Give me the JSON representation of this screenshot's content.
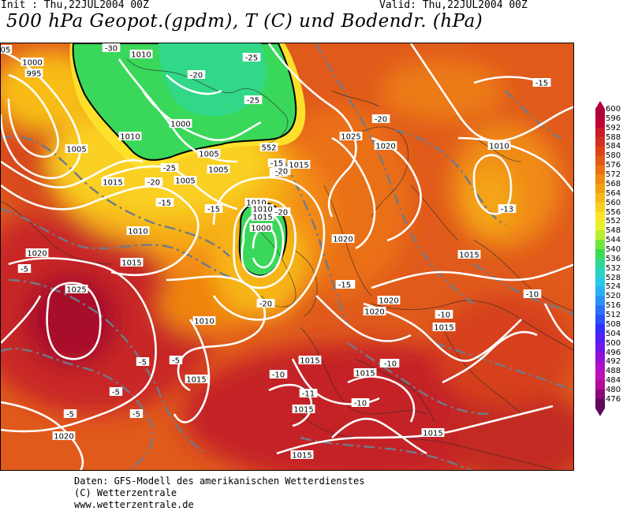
{
  "header": {
    "init": "Init : Thu,22JUL2004 00Z",
    "valid": "Valid: Thu,22JUL2004 00Z",
    "title": "500 hPa Geopot.(gpdm), T (C) und Bodendr. (hPa)"
  },
  "legend": {
    "levels": [
      "600",
      "596",
      "592",
      "588",
      "584",
      "580",
      "576",
      "572",
      "568",
      "564",
      "560",
      "556",
      "552",
      "548",
      "544",
      "540",
      "536",
      "532",
      "528",
      "524",
      "520",
      "516",
      "512",
      "508",
      "504",
      "500",
      "496",
      "492",
      "488",
      "484",
      "480",
      "476"
    ],
    "colors": [
      "#b0003a",
      "#c00038",
      "#cc1a2a",
      "#d42e20",
      "#dc4418",
      "#e45a14",
      "#ea7012",
      "#f08a10",
      "#f4a012",
      "#f8b816",
      "#fad020",
      "#fce42a",
      "#e8f02a",
      "#b8ee30",
      "#6ee83c",
      "#3cdc50",
      "#2ed890",
      "#28d4c0",
      "#26c8e4",
      "#2ab0f4",
      "#2c90f8",
      "#2c70fc",
      "#2c50fc",
      "#3030fc",
      "#5020f4",
      "#7018e8",
      "#9010d8",
      "#b010c8",
      "#c010b8",
      "#b00c98",
      "#8a0878",
      "#60085a"
    ]
  },
  "map": {
    "isobar_labels": [
      {
        "text": "1000"
      },
      {
        "text": "995"
      },
      {
        "text": "1010"
      },
      {
        "text": "1000"
      },
      {
        "text": "1005"
      },
      {
        "text": "1010"
      },
      {
        "text": "1005"
      },
      {
        "text": "1005"
      },
      {
        "text": "1015"
      },
      {
        "text": "1015"
      },
      {
        "text": "1025"
      },
      {
        "text": "1020"
      },
      {
        "text": "1010"
      },
      {
        "text": "1010"
      },
      {
        "text": "1010"
      },
      {
        "text": "1015"
      },
      {
        "text": "1010"
      },
      {
        "text": "1005"
      },
      {
        "text": "1000"
      },
      {
        "text": "1020"
      },
      {
        "text": "1015"
      },
      {
        "text": "1020"
      },
      {
        "text": "1015"
      },
      {
        "text": "1025"
      },
      {
        "text": "1010"
      },
      {
        "text": "1020"
      },
      {
        "text": "1020"
      },
      {
        "text": "1015"
      },
      {
        "text": "1015"
      },
      {
        "text": "1015"
      },
      {
        "text": "1015"
      },
      {
        "text": "1015"
      },
      {
        "text": "1020"
      },
      {
        "text": "1015"
      },
      {
        "text": "1015"
      }
    ],
    "temp_labels": [
      {
        "text": "-30"
      },
      {
        "text": "-25"
      },
      {
        "text": "-20"
      },
      {
        "text": "-25"
      },
      {
        "text": "-20"
      },
      {
        "text": "-25"
      },
      {
        "text": "-20"
      },
      {
        "text": "-15"
      },
      {
        "text": "-15"
      },
      {
        "text": "-20"
      },
      {
        "text": "-15"
      },
      {
        "text": "-15"
      },
      {
        "text": "-20"
      },
      {
        "text": "-20"
      },
      {
        "text": "-15"
      },
      {
        "text": "-13"
      },
      {
        "text": "-10"
      },
      {
        "text": "-10"
      },
      {
        "text": "-5"
      },
      {
        "text": "-5"
      },
      {
        "text": "-5"
      },
      {
        "text": "-5"
      },
      {
        "text": "-5"
      },
      {
        "text": "-10"
      },
      {
        "text": "-10"
      },
      {
        "text": "-10"
      },
      {
        "text": "-11"
      },
      {
        "text": "-10"
      },
      {
        "text": "-5"
      },
      {
        "text": "-20"
      },
      {
        "text": "-15"
      },
      {
        "text": "-20"
      },
      {
        "text": "-15"
      }
    ],
    "edge_labels": [
      {
        "text": "05"
      },
      {
        "text": "552"
      }
    ]
  },
  "credits": {
    "line1": "Daten: GFS-Modell des amerikanischen Wetterdienstes",
    "line2": "(C) Wetterzentrale",
    "line3": "www.wetterzentrale.de"
  }
}
